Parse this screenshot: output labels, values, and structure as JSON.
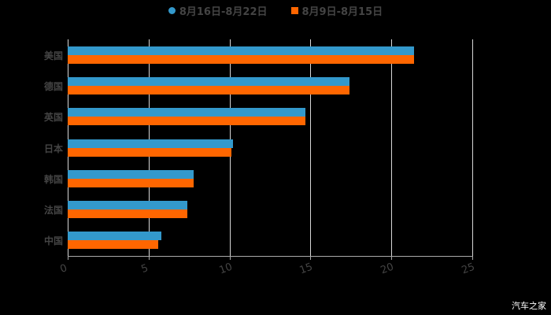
{
  "chart_data": {
    "type": "bar",
    "orientation": "horizontal",
    "title": "",
    "xlabel": "",
    "ylabel": "",
    "categories": [
      "美国",
      "德国",
      "英国",
      "日本",
      "韩国",
      "法国",
      "中国"
    ],
    "series": [
      {
        "name": "8月16日-8月22日",
        "color": "#3399cc",
        "values": [
          21.4,
          17.4,
          14.7,
          10.2,
          7.8,
          7.4,
          5.8
        ]
      },
      {
        "name": "8月9日-8月15日",
        "color": "#ff6600",
        "values": [
          21.4,
          17.4,
          14.7,
          10.1,
          7.8,
          7.4,
          5.6
        ]
      }
    ],
    "xlim": [
      0,
      25
    ],
    "xticks": [
      "0",
      "5",
      "10",
      "15",
      "20",
      "25"
    ],
    "grid": true,
    "legend_position": "top"
  },
  "legend": {
    "items": [
      {
        "label": "8月16日-8月22日",
        "color": "#3399cc"
      },
      {
        "label": "8月9日-8月15日",
        "color": "#ff6600"
      }
    ]
  },
  "watermark": "汽车之家"
}
